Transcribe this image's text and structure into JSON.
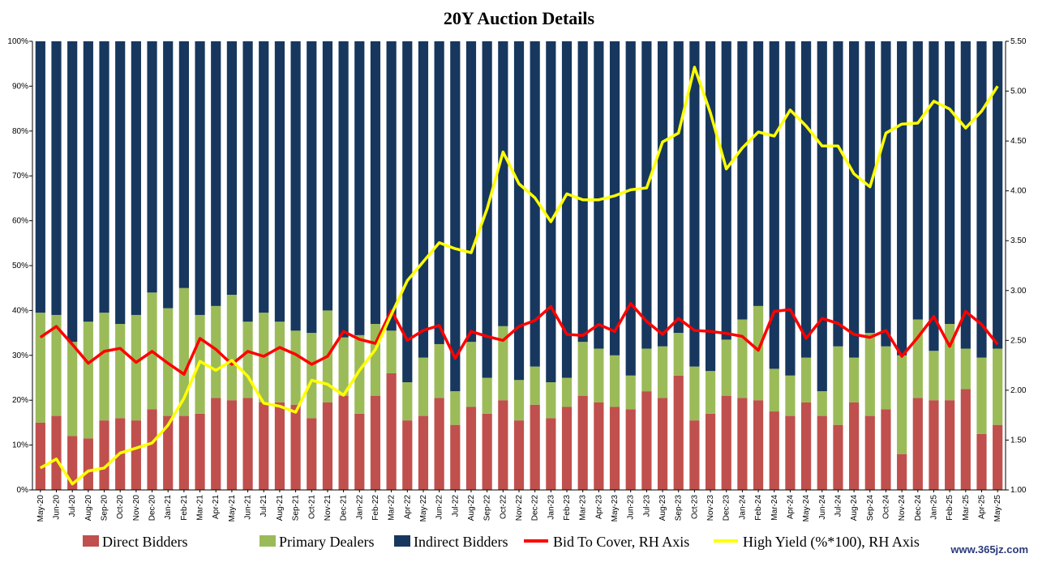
{
  "chart_data": {
    "type": "bar",
    "title": "20Y Auction Details",
    "stacked": true,
    "grid": false,
    "legend_position": "bottom",
    "categories": [
      "May-20",
      "Jun-20",
      "Jul-20",
      "Aug-20",
      "Sep-20",
      "Oct-20",
      "Nov-20",
      "Dec-20",
      "Jan-21",
      "Feb-21",
      "Mar-21",
      "Apr-21",
      "May-21",
      "Jun-21",
      "Jul-21",
      "Aug-21",
      "Sep-21",
      "Oct-21",
      "Nov-21",
      "Dec-21",
      "Jan-22",
      "Feb-22",
      "Mar-22",
      "Apr-22",
      "May-22",
      "Jun-22",
      "Jul-22",
      "Aug-22",
      "Sep-22",
      "Oct-22",
      "Nov-22",
      "Dec-22",
      "Jan-23",
      "Feb-23",
      "Mar-23",
      "Apr-23",
      "May-23",
      "Jun-23",
      "Jul-23",
      "Aug-23",
      "Sep-23",
      "Oct-23",
      "Nov-23",
      "Dec-23",
      "Jan-24",
      "Feb-24",
      "Mar-24",
      "Apr-24",
      "May-24",
      "Jun-24",
      "Jul-24",
      "Aug-24",
      "Sep-24",
      "Oct-24",
      "Nov-24",
      "Dec-24",
      "Jan-25",
      "Feb-25",
      "Mar-25",
      "Apr-25",
      "May-25"
    ],
    "xtick_labels": [
      "May-20",
      "Jun-20",
      "Jul-20",
      "Aug-20",
      "Sep-20",
      "Oct-20",
      "Nov-20",
      "Dec-20",
      "Jan-21",
      "Feb-21",
      "Mar-21",
      "Apr-21",
      "May-21",
      "Jun-21",
      "Jul-21",
      "Aug-21",
      "Sep-21",
      "Oct-21",
      "Nov-21",
      "Dec-21",
      "Jan-22",
      "Feb-22",
      "Mar-22",
      "Apr-22",
      "May-22",
      "Jun-22",
      "Jul-22",
      "Aug-22",
      "Sep-22",
      "Oct-22",
      "Nov-22",
      "Dec-22",
      "Jan-23",
      "Feb-23",
      "Mar-23",
      "Apr-23",
      "May-23",
      "Jun-23",
      "Jul-23",
      "Aug-23",
      "Sep-23",
      "Oct-23",
      "Nov-23",
      "Dec-23",
      "Jan-24",
      "Feb-24",
      "Mar-24",
      "Apr-24",
      "May-24",
      "Jun-24",
      "Jul-24",
      "Aug-24",
      "Sep-24",
      "Oct-24",
      "Nov-24",
      "Dec-24",
      "Jan-25",
      "Feb-25",
      "Mar-25",
      "Apr-25",
      "May-25"
    ],
    "ylim_left": [
      0,
      100
    ],
    "yticks_left": [
      "0%",
      "10%",
      "20%",
      "30%",
      "40%",
      "50%",
      "60%",
      "70%",
      "80%",
      "90%",
      "100%"
    ],
    "ylim_right": [
      1.0,
      5.5
    ],
    "yticks_right": [
      "1.00",
      "1.50",
      "2.00",
      "2.50",
      "3.00",
      "3.50",
      "4.00",
      "4.50",
      "5.00",
      "5.50"
    ],
    "series": [
      {
        "name": "Direct Bidders",
        "kind": "bar",
        "axis": "left",
        "color": "#c0504d",
        "values": [
          15,
          16.5,
          12,
          11.5,
          15.5,
          16,
          15.5,
          18,
          16.5,
          16.5,
          17,
          20.5,
          20,
          20.5,
          19.5,
          19.5,
          19,
          16,
          19.5,
          21,
          17,
          21,
          26,
          15.5,
          16.5,
          20.5,
          14.5,
          18.5,
          17,
          20,
          15.5,
          19,
          16,
          18.5,
          21,
          19.5,
          18.5,
          18,
          22,
          20.5,
          25.5,
          15.5,
          17,
          21,
          20.5,
          20,
          17.5,
          16.5,
          19.5,
          16.5,
          14.5,
          19.5,
          16.5,
          18,
          8,
          20.5,
          20,
          20,
          22.5,
          12.5,
          14.5
        ]
      },
      {
        "name": "Primary Dealers",
        "kind": "bar",
        "axis": "left",
        "color": "#9bbb59",
        "values": [
          24.5,
          22.5,
          21,
          26,
          24,
          21,
          23.5,
          26,
          24,
          28.5,
          22,
          20.5,
          23.5,
          17,
          20,
          18,
          16.5,
          19,
          20.5,
          13,
          17.5,
          16,
          9.5,
          8.5,
          13,
          12,
          7.5,
          14.5,
          8,
          16.5,
          9,
          8.5,
          8,
          6.5,
          12,
          12,
          11.5,
          7.5,
          9.5,
          11.5,
          9.5,
          12,
          9.5,
          12.5,
          17.5,
          21,
          9.5,
          9,
          10,
          5.5,
          17.5,
          10,
          18.5,
          14,
          22,
          17.5,
          11,
          17,
          9,
          17,
          17
        ]
      },
      {
        "name": "Indirect Bidders",
        "kind": "bar",
        "axis": "left",
        "color": "#17375e",
        "values": [
          60.5,
          61,
          67,
          62.5,
          60.5,
          63,
          61,
          56,
          59.5,
          55,
          61,
          59,
          56.5,
          62.5,
          60.5,
          62.5,
          64.5,
          65,
          60,
          66,
          65.5,
          63,
          64.5,
          76,
          70.5,
          67.5,
          78,
          67,
          75,
          63.5,
          75.5,
          72.5,
          76,
          75,
          67,
          68.5,
          70,
          74.5,
          68.5,
          68,
          65,
          72.5,
          73.5,
          66.5,
          62,
          59,
          73,
          74.5,
          70.5,
          78,
          68,
          70.5,
          65,
          68,
          70,
          62,
          69,
          63,
          68.5,
          70.5,
          68.5
        ]
      },
      {
        "name": "Bid To Cover, RH Axis",
        "kind": "line",
        "axis": "right",
        "color": "#ff0000",
        "values": [
          2.53,
          2.64,
          2.46,
          2.27,
          2.39,
          2.42,
          2.28,
          2.39,
          2.27,
          2.16,
          2.52,
          2.41,
          2.26,
          2.39,
          2.34,
          2.43,
          2.36,
          2.26,
          2.34,
          2.59,
          2.51,
          2.47,
          2.8,
          2.5,
          2.6,
          2.65,
          2.32,
          2.59,
          2.54,
          2.5,
          2.64,
          2.7,
          2.84,
          2.56,
          2.55,
          2.66,
          2.59,
          2.87,
          2.69,
          2.56,
          2.72,
          2.6,
          2.59,
          2.57,
          2.54,
          2.4,
          2.79,
          2.81,
          2.52,
          2.72,
          2.67,
          2.56,
          2.53,
          2.6,
          2.34,
          2.53,
          2.74,
          2.44,
          2.79,
          2.66,
          2.46
        ]
      },
      {
        "name": "High Yield (%*100), RH Axis",
        "kind": "line",
        "axis": "right",
        "color": "#ffff00",
        "values": [
          1.22,
          1.31,
          1.06,
          1.19,
          1.22,
          1.37,
          1.42,
          1.47,
          1.65,
          1.92,
          2.29,
          2.2,
          2.3,
          2.14,
          1.87,
          1.84,
          1.78,
          2.1,
          2.06,
          1.95,
          2.2,
          2.41,
          2.76,
          3.1,
          3.29,
          3.48,
          3.42,
          3.38,
          3.82,
          4.39,
          4.07,
          3.93,
          3.69,
          3.97,
          3.91,
          3.91,
          3.95,
          4.01,
          4.03,
          4.49,
          4.58,
          5.24,
          4.78,
          4.22,
          4.43,
          4.59,
          4.55,
          4.81,
          4.65,
          4.45,
          4.45,
          4.17,
          4.04,
          4.58,
          4.67,
          4.68,
          4.9,
          4.82,
          4.63,
          4.8,
          5.05
        ]
      }
    ]
  },
  "watermark": "www.365jz.com"
}
